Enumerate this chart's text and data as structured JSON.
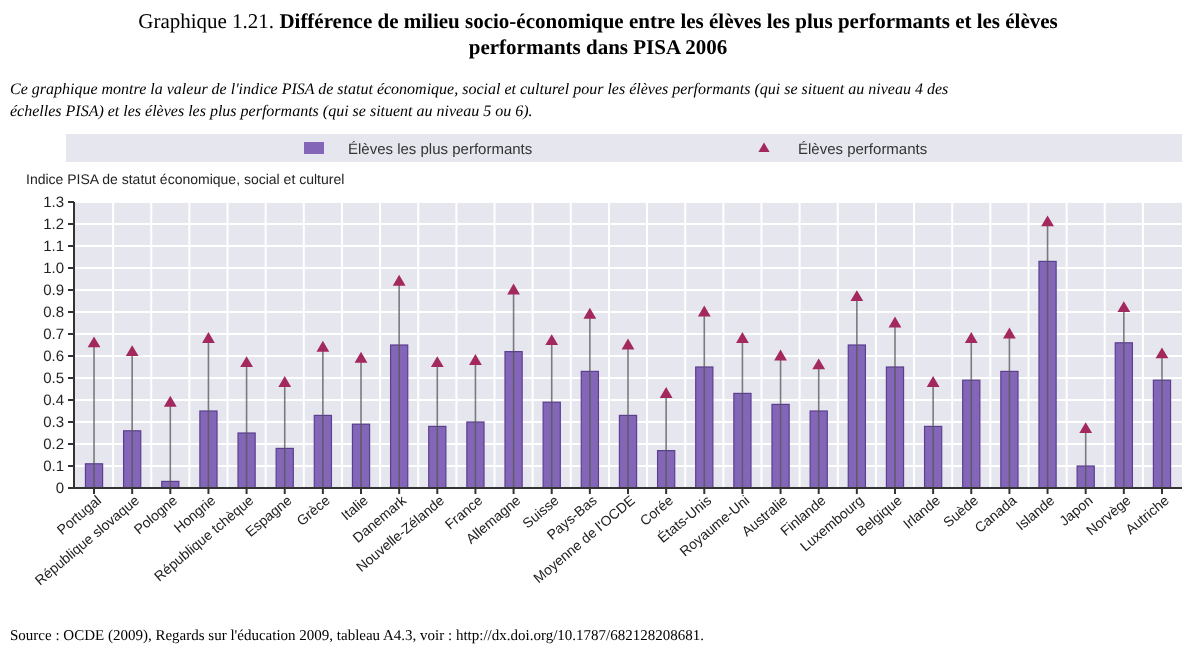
{
  "chart_data": {
    "type": "bar",
    "title": "Graphique 1.21. Différence de milieu socio-économique entre les élèves les plus performants et les élèves performants dans PISA 2006",
    "subtitle": "Ce graphique montre la valeur de l'indice PISA de statut économique, social et culturel pour les élèves performants (qui se situent au niveau 4 des échelles PISA) et les élèves les plus performants (qui se situent au niveau 5 ou 6).",
    "ylabel": "Indice PISA de statut économique, social et culturel",
    "annotations": [
      "Source : OCDE (2009), Regards sur l'éducation 2009, tableau A4.3, voir : http://dx.doi.org/10.1787/682128208681."
    ],
    "categories": [
      "Portugal",
      "République slovaque",
      "Pologne",
      "Hongrie",
      "République tchèque",
      "Espagne",
      "Grèce",
      "Italie",
      "Danemark",
      "Nouvelle-Zélande",
      "France",
      "Allemagne",
      "Suisse",
      "Pays-Bas",
      "Moyenne de l'OCDE",
      "Corée",
      "États-Unis",
      "Royaume-Uni",
      "Australie",
      "Finlande",
      "Luxembourg",
      "Belgique",
      "Irlande",
      "Suède",
      "Canada",
      "Islande",
      "Japon",
      "Norvège",
      "Autriche"
    ],
    "series": [
      {
        "name": "Élèves les plus performants",
        "type": "bar",
        "color": "#8466b8",
        "values": [
          0.11,
          0.26,
          0.03,
          0.35,
          0.25,
          0.18,
          0.33,
          0.29,
          0.65,
          0.28,
          0.3,
          0.62,
          0.39,
          0.53,
          0.33,
          0.17,
          0.55,
          0.43,
          0.38,
          0.35,
          0.65,
          0.55,
          0.28,
          0.49,
          0.53,
          1.03,
          0.1,
          0.66,
          0.49
        ]
      },
      {
        "name": "Élèves performants",
        "type": "lollipop",
        "marker": "triangle",
        "color": "#a3285e",
        "values": [
          0.66,
          0.62,
          0.39,
          0.68,
          0.57,
          0.48,
          0.64,
          0.59,
          0.94,
          0.57,
          0.58,
          0.9,
          0.67,
          0.79,
          0.65,
          0.43,
          0.8,
          0.68,
          0.6,
          0.56,
          0.87,
          0.75,
          0.48,
          0.68,
          0.7,
          1.21,
          0.27,
          0.82,
          0.61
        ]
      }
    ],
    "ylim": [
      0,
      1.3
    ],
    "yticks": [
      0,
      {
        "value": 0.1,
        "label": "0.1"
      },
      {
        "value": 0.2,
        "label": "0.2"
      },
      {
        "value": 0.3,
        "label": "0.3"
      },
      {
        "value": 0.4,
        "label": "0.4"
      },
      {
        "value": 0.5,
        "label": "0.5"
      },
      {
        "value": 0.6,
        "label": "0.6"
      },
      {
        "value": 0.7,
        "label": "0.7"
      },
      {
        "value": 0.8,
        "label": "0.8"
      },
      {
        "value": 0.9,
        "label": "0.9"
      },
      {
        "value": 1,
        "label": "1.0"
      },
      {
        "value": 1.1,
        "label": "1.1"
      },
      {
        "value": 1.2,
        "label": "1.2"
      },
      {
        "value": 1.3,
        "label": "1.3"
      }
    ],
    "grid": true,
    "legend": "top"
  }
}
